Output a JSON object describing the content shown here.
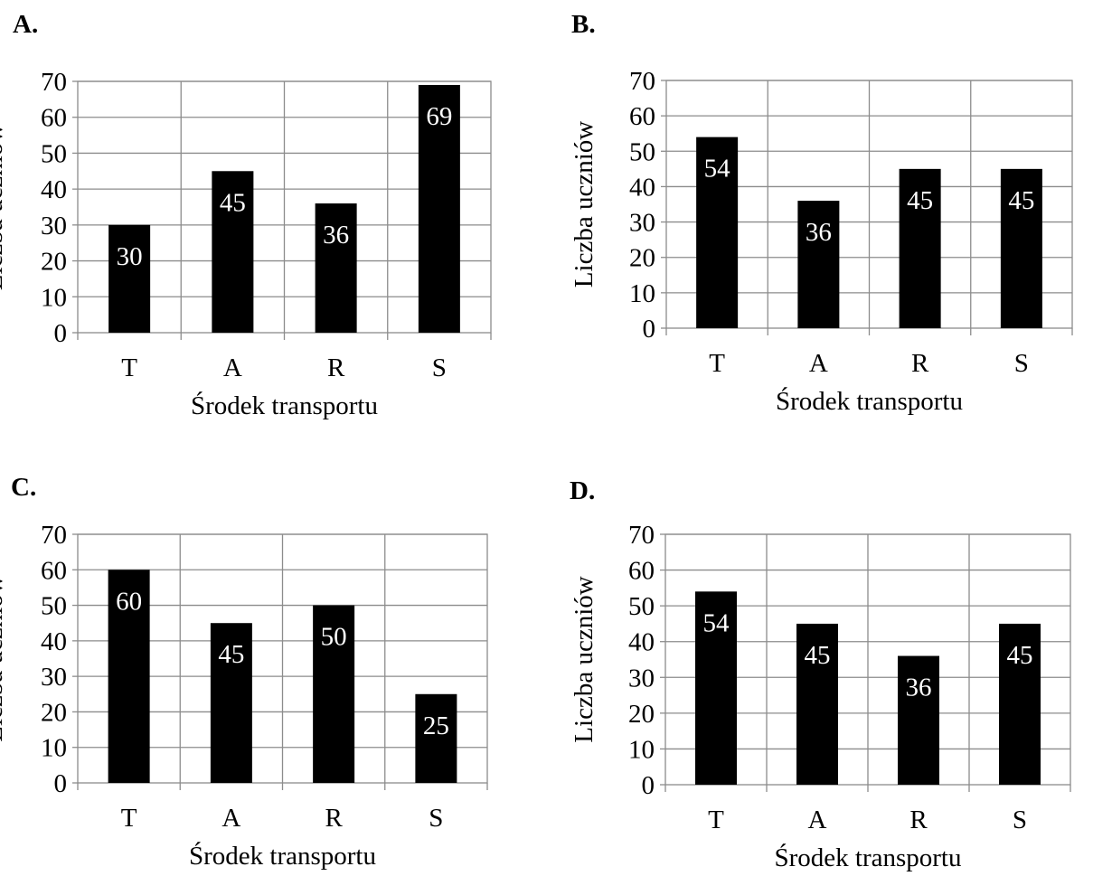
{
  "chart_data": [
    {
      "type": "bar",
      "panel_label": "A.",
      "categories": [
        "T",
        "A",
        "R",
        "S"
      ],
      "values": [
        30,
        45,
        36,
        69
      ],
      "value_labels": [
        "30",
        "45",
        "36",
        "69"
      ],
      "xlabel": "Środek transportu",
      "ylabel": "Liczba uczniów",
      "ylim": [
        0,
        70
      ],
      "yticks": [
        "0",
        "10",
        "20",
        "30",
        "40",
        "50",
        "60",
        "70"
      ],
      "grid": true,
      "bar_color": "#000000",
      "label_color": "#ffffff"
    },
    {
      "type": "bar",
      "panel_label": "B.",
      "categories": [
        "T",
        "A",
        "R",
        "S"
      ],
      "values": [
        54,
        36,
        45,
        45
      ],
      "value_labels": [
        "54",
        "36",
        "45",
        "45"
      ],
      "xlabel": "Środek transportu",
      "ylabel": "Liczba uczniów",
      "ylim": [
        0,
        70
      ],
      "yticks": [
        "0",
        "10",
        "20",
        "30",
        "40",
        "50",
        "60",
        "70"
      ],
      "grid": true,
      "bar_color": "#000000",
      "label_color": "#ffffff"
    },
    {
      "type": "bar",
      "panel_label": "C.",
      "categories": [
        "T",
        "A",
        "R",
        "S"
      ],
      "values": [
        60,
        45,
        50,
        25
      ],
      "value_labels": [
        "60",
        "45",
        "50",
        "25"
      ],
      "xlabel": "Środek transportu",
      "ylabel": "Liczba uczniów",
      "ylim": [
        0,
        70
      ],
      "yticks": [
        "0",
        "10",
        "20",
        "30",
        "40",
        "50",
        "60",
        "70"
      ],
      "grid": true,
      "bar_color": "#000000",
      "label_color": "#ffffff"
    },
    {
      "type": "bar",
      "panel_label": "D.",
      "categories": [
        "T",
        "A",
        "R",
        "S"
      ],
      "values": [
        54,
        45,
        36,
        45
      ],
      "value_labels": [
        "54",
        "45",
        "36",
        "45"
      ],
      "xlabel": "Środek transportu",
      "ylabel": "Liczba uczniów",
      "ylim": [
        0,
        70
      ],
      "yticks": [
        "0",
        "10",
        "20",
        "30",
        "40",
        "50",
        "60",
        "70"
      ],
      "grid": true,
      "bar_color": "#000000",
      "label_color": "#ffffff"
    }
  ]
}
